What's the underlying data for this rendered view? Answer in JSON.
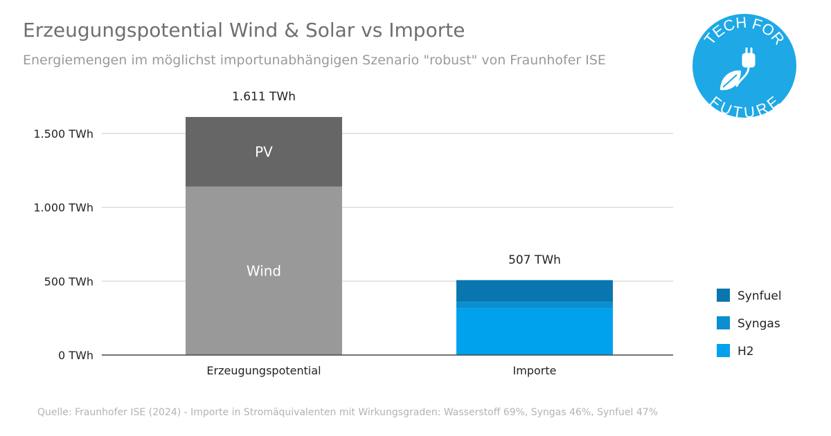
{
  "title": "Erzeugungspotential Wind & Solar vs Importe",
  "subtitle": "Energiemengen im möglichst importunabhängigen Szenario \"robust\" von Fraunhofer ISE",
  "source": "Quelle: Fraunhofer ISE (2024) - Importe in Stromäquivalenten mit Wirkungsgraden: Wasserstoff 69%, Syngas 46%, Synfuel 47%",
  "logo": {
    "text_top": "TECH FOR",
    "text_bottom": "FUTURE",
    "color": "#1ea8e6"
  },
  "chart_data": {
    "type": "bar",
    "stacked": true,
    "categories": [
      "Erzeugungspotential",
      "Importe"
    ],
    "unit": "TWh",
    "ylim": [
      0,
      1650
    ],
    "yticks": [
      0,
      500,
      1000,
      1500
    ],
    "ytick_labels": [
      "0 TWh",
      "500 TWh",
      "1.000 TWh",
      "1.500 TWh"
    ],
    "grid": true,
    "totals": [
      1611,
      507
    ],
    "total_labels": [
      "1.611 TWh",
      "507 TWh"
    ],
    "series": [
      {
        "name": "Wind",
        "values": [
          1140,
          0
        ],
        "color": "#999999",
        "label_in_bar": true,
        "in_legend": false
      },
      {
        "name": "PV",
        "values": [
          471,
          0
        ],
        "color": "#666666",
        "label_in_bar": true,
        "in_legend": false
      },
      {
        "name": "H2",
        "values": [
          0,
          315
        ],
        "color": "#00a2ee",
        "label_in_bar": false,
        "in_legend": true
      },
      {
        "name": "Syngas",
        "values": [
          0,
          45
        ],
        "color": "#0a8fd2",
        "label_in_bar": false,
        "in_legend": true
      },
      {
        "name": "Synfuel",
        "values": [
          0,
          147
        ],
        "color": "#0a76b0",
        "label_in_bar": false,
        "in_legend": true
      }
    ],
    "legend_position": "right",
    "legend_order": [
      "Synfuel",
      "Syngas",
      "H2"
    ]
  }
}
